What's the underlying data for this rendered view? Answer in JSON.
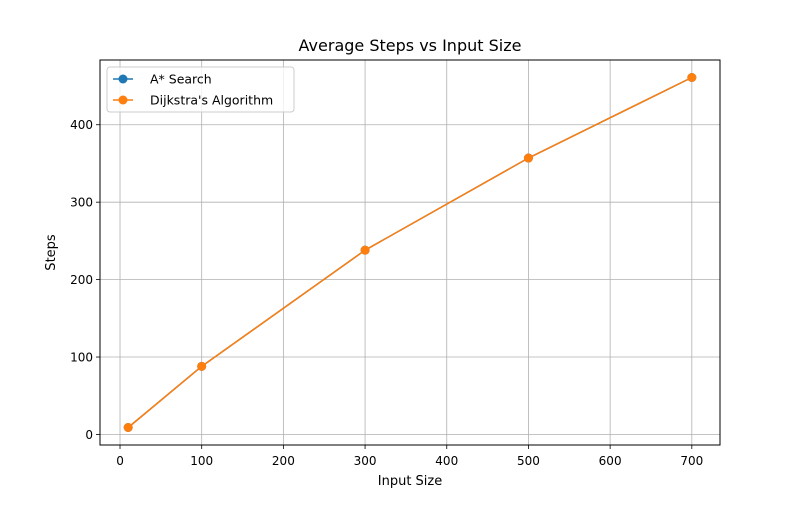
{
  "chart_data": {
    "type": "line",
    "title": "Average Steps vs Input Size",
    "xlabel": "Input Size",
    "ylabel": "Steps",
    "x": [
      10,
      100,
      300,
      500,
      700
    ],
    "series": [
      {
        "name": "A* Search",
        "values": [
          9,
          88,
          238,
          357,
          461
        ],
        "color": "#1f77b4",
        "marker": "circle"
      },
      {
        "name": "Dijkstra's Algorithm",
        "values": [
          9,
          88,
          238,
          357,
          461
        ],
        "color": "#ff7f0e",
        "marker": "circle"
      }
    ],
    "xlim": [
      -24.5,
      734.5
    ],
    "ylim": [
      -13.6,
      483.6
    ],
    "xticks": [
      0,
      100,
      200,
      300,
      400,
      500,
      600,
      700
    ],
    "yticks": [
      0,
      100,
      200,
      300,
      400
    ],
    "grid": true,
    "legend_position": "upper left"
  }
}
